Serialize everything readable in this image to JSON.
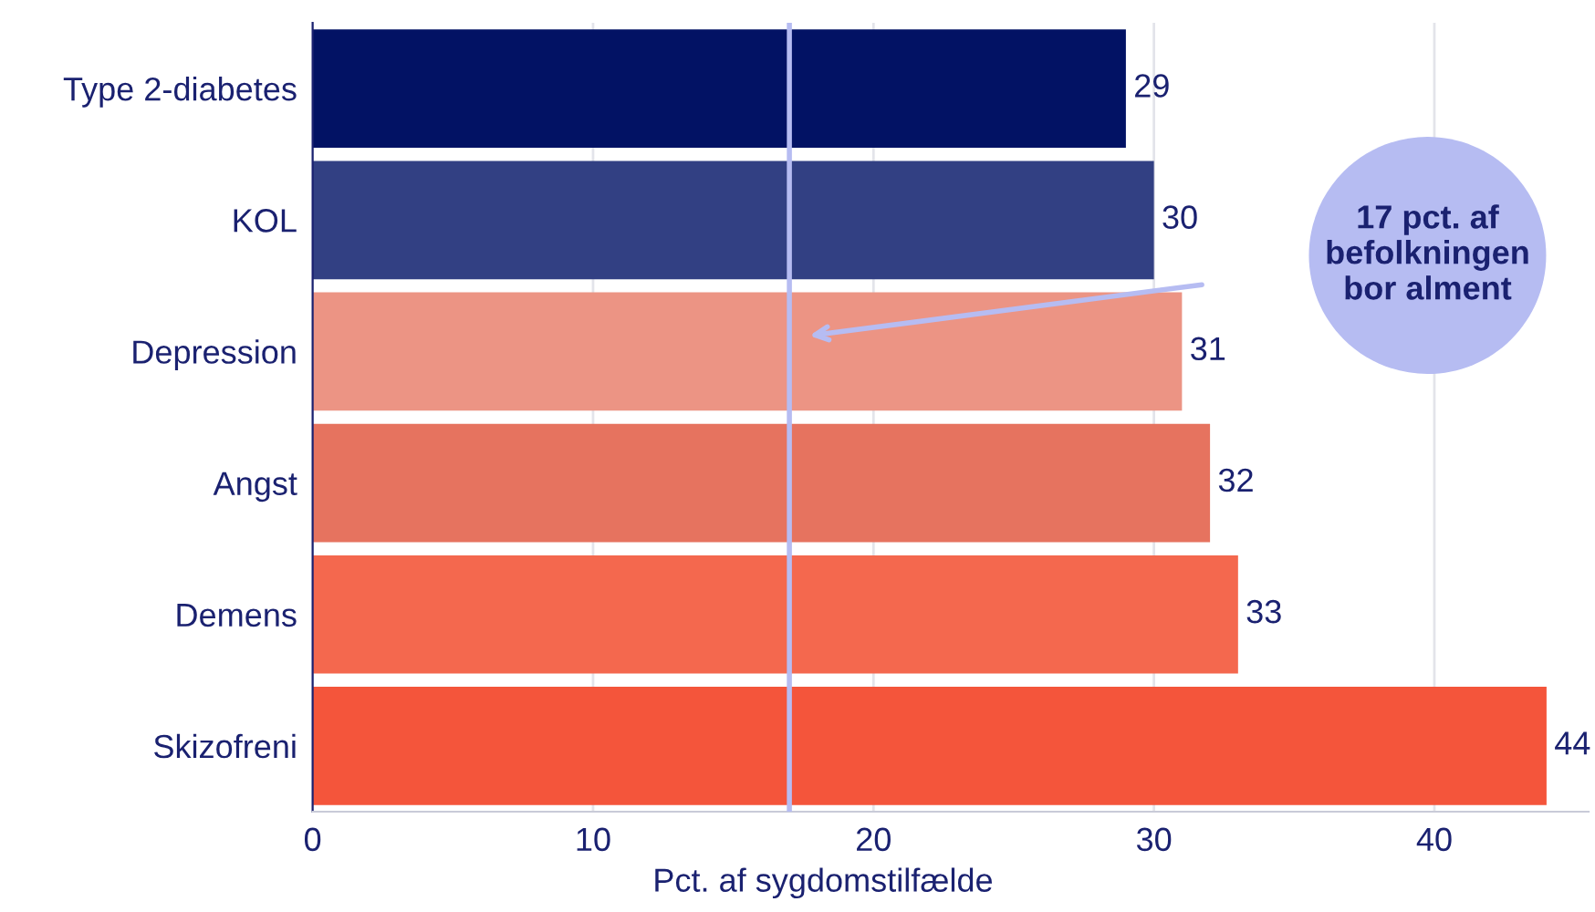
{
  "chart_data": {
    "type": "bar",
    "orientation": "horizontal",
    "xlabel": "Pct. af sygdomstilfælde",
    "categories": [
      "Type 2-diabetes",
      "KOL",
      "Depression",
      "Angst",
      "Demens",
      "Skizofreni"
    ],
    "values": [
      29,
      30,
      31,
      32,
      33,
      44
    ],
    "colors": [
      "#021264",
      "#324083",
      "#ec9484",
      "#e6735f",
      "#f4684e",
      "#f4553b"
    ],
    "data_labels": true,
    "xlim": [
      0,
      45.5
    ],
    "xticks": [
      0,
      10,
      20,
      30,
      40
    ],
    "grid": "x",
    "ref_lines": [
      {
        "axis": "x",
        "value": 17,
        "color": "#b6bcf2"
      }
    ],
    "annotations": [
      "17 pct. af\nbefolkningen\nbor alment"
    ]
  }
}
